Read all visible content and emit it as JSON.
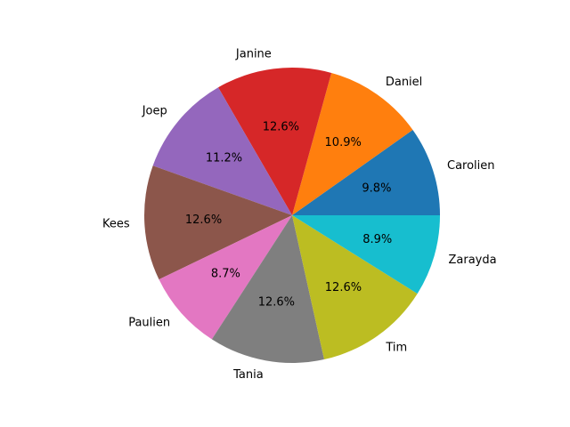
{
  "chart_data": {
    "type": "pie",
    "title": "",
    "start_angle_deg": 0,
    "direction": "counterclockwise",
    "slices": [
      {
        "label": "Carolien",
        "value": 9.8,
        "pct_label": "9.8%",
        "color": "#1f77b4"
      },
      {
        "label": "Daniel",
        "value": 10.9,
        "pct_label": "10.9%",
        "color": "#ff7f0e"
      },
      {
        "label": "Janine",
        "value": 12.6,
        "pct_label": "12.6%",
        "color": "#d62728"
      },
      {
        "label": "Joep",
        "value": 11.2,
        "pct_label": "11.2%",
        "color": "#9467bd"
      },
      {
        "label": "Kees",
        "value": 12.6,
        "pct_label": "12.6%",
        "color": "#8c564b"
      },
      {
        "label": "Paulien",
        "value": 8.7,
        "pct_label": "8.7%",
        "color": "#e377c2"
      },
      {
        "label": "Tania",
        "value": 12.6,
        "pct_label": "12.6%",
        "color": "#7f7f7f"
      },
      {
        "label": "Tim",
        "value": 12.6,
        "pct_label": "12.6%",
        "color": "#bcbd22"
      },
      {
        "label": "Zarayda",
        "value": 8.9,
        "pct_label": "8.9%",
        "color": "#17becf"
      }
    ]
  }
}
